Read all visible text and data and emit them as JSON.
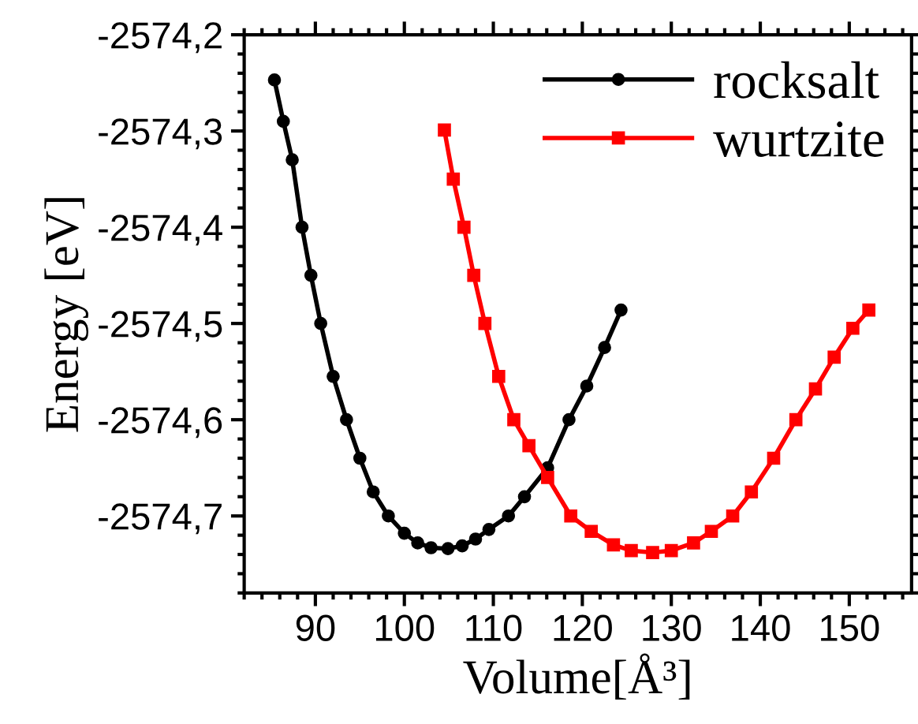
{
  "chart_data": {
    "type": "line",
    "xlabel": "Volume[Å³]",
    "ylabel": "Energy [eV]",
    "xlim": [
      82,
      157
    ],
    "xticks": [
      90,
      100,
      110,
      120,
      130,
      140,
      150
    ],
    "ylim": [
      -2574.78,
      -2574.2
    ],
    "yticks": [
      {
        "value": -2574.7,
        "label": "-2574,7"
      },
      {
        "value": -2574.6,
        "label": "-2574,6"
      },
      {
        "value": -2574.5,
        "label": "-2574,5"
      },
      {
        "value": -2574.4,
        "label": "-2574,4"
      },
      {
        "value": -2574.3,
        "label": "-2574,3"
      },
      {
        "value": -2574.2,
        "label": "-2574,2"
      }
    ],
    "grid": false,
    "legend": "top right",
    "line_style": "solid",
    "series": [
      {
        "name": "rocksalt",
        "color": "#000000",
        "marker": "circle",
        "x": [
          85.4,
          86.4,
          87.4,
          88.5,
          89.5,
          90.6,
          92.0,
          93.5,
          95.0,
          96.5,
          98.2,
          100.0,
          101.5,
          103.0,
          104.9,
          106.5,
          108.0,
          109.5,
          111.7,
          113.5,
          116.1,
          118.5,
          120.5,
          122.5,
          124.35
        ],
        "values": [
          -2574.247,
          -2574.29,
          -2574.33,
          -2574.4,
          -2574.45,
          -2574.5,
          -2574.555,
          -2574.6,
          -2574.64,
          -2574.675,
          -2574.7,
          -2574.718,
          -2574.728,
          -2574.733,
          -2574.734,
          -2574.731,
          -2574.724,
          -2574.714,
          -2574.7,
          -2574.68,
          -2574.65,
          -2574.6,
          -2574.565,
          -2574.525,
          -2574.486
        ]
      },
      {
        "name": "wurtzite",
        "color": "#ff0000",
        "marker": "square",
        "x": [
          104.5,
          105.5,
          106.7,
          107.8,
          109.05,
          110.6,
          112.3,
          114.0,
          116.1,
          118.7,
          121.0,
          123.5,
          125.5,
          127.9,
          130.0,
          132.5,
          134.5,
          136.9,
          139.0,
          141.5,
          144.0,
          146.2,
          148.3,
          150.4,
          152.2
        ],
        "values": [
          -2574.299,
          -2574.35,
          -2574.4,
          -2574.45,
          -2574.5,
          -2574.555,
          -2574.6,
          -2574.627,
          -2574.66,
          -2574.7,
          -2574.716,
          -2574.73,
          -2574.736,
          -2574.738,
          -2574.736,
          -2574.728,
          -2574.716,
          -2574.7,
          -2574.675,
          -2574.64,
          -2574.6,
          -2574.568,
          -2574.535,
          -2574.505,
          -2574.486
        ]
      }
    ]
  }
}
